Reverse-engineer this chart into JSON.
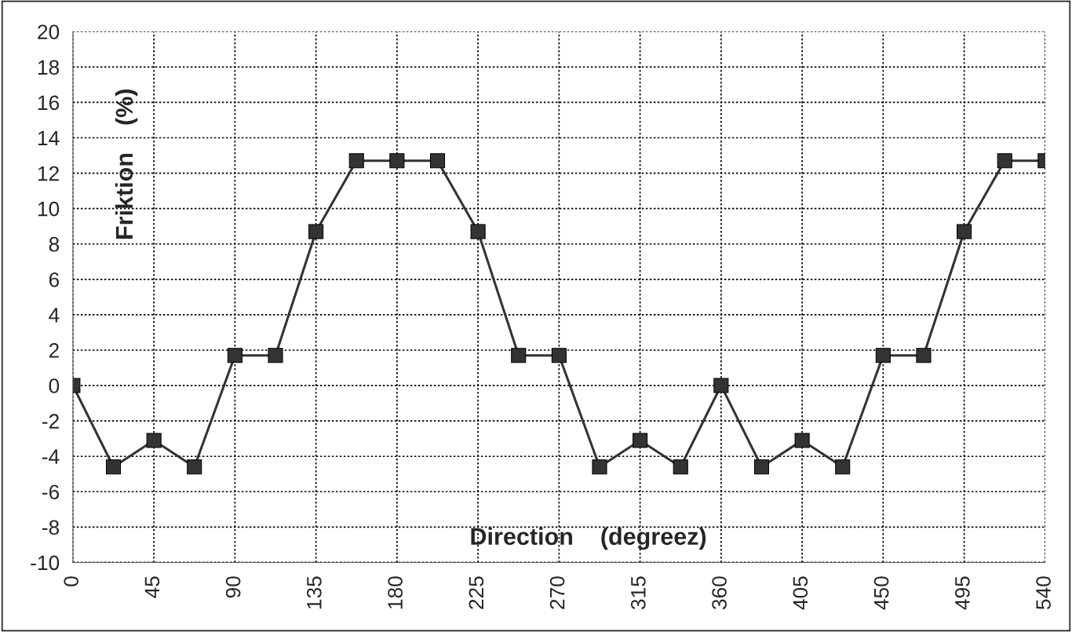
{
  "chart_data": {
    "type": "line",
    "xlabel": "Direction    (degreez)",
    "ylabel": "Friktion    (%)",
    "x": [
      0,
      22.5,
      45,
      67.5,
      90,
      112.5,
      135,
      157.5,
      180,
      202.5,
      225,
      247.5,
      270,
      292.5,
      315,
      337.5,
      360,
      382.5,
      405,
      427.5,
      450,
      472.5,
      495,
      517.5,
      540
    ],
    "series": [
      {
        "color": "#333333",
        "values": [
          0,
          -4.6,
          -3.1,
          -4.6,
          1.7,
          1.7,
          8.7,
          12.7,
          12.7,
          12.7,
          8.7,
          1.7,
          1.7,
          -4.6,
          -3.1,
          -4.6,
          0,
          -4.6,
          -3.1,
          -4.6,
          1.7,
          1.7,
          8.7,
          12.7,
          12.7
        ]
      }
    ],
    "xlim": [
      0,
      540
    ],
    "ylim": [
      -10,
      20
    ],
    "xticks": [
      0,
      45,
      90,
      135,
      180,
      225,
      270,
      315,
      360,
      405,
      450,
      495,
      540
    ],
    "yticks": [
      -10,
      -8,
      -6,
      -4,
      -2,
      0,
      2,
      4,
      6,
      8,
      10,
      12,
      14,
      16,
      18,
      20
    ],
    "grid": true,
    "marker": "square",
    "line_style": "solid",
    "legend": false
  }
}
